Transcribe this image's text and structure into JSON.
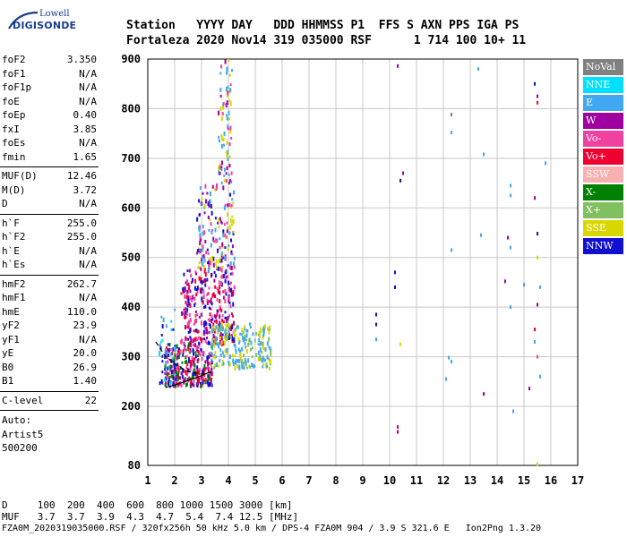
{
  "logo": {
    "line1": "Lowell",
    "line2": "DIGISONDE"
  },
  "header": {
    "line1": "Station   YYYY DAY   DDD HHMMSS P1  FFS S AXN PPS IGA PS",
    "line2": "Fortaleza 2020 Nov14 319 035000 RSF      1 714 100 10+ 11"
  },
  "params": {
    "group1": [
      {
        "name": "foF2",
        "value": "3.350"
      },
      {
        "name": "foF1",
        "value": "N/A"
      },
      {
        "name": "foF1p",
        "value": "N/A"
      },
      {
        "name": "foE",
        "value": "N/A"
      },
      {
        "name": "foEp",
        "value": "0.40"
      },
      {
        "name": "fxI",
        "value": "3.85"
      },
      {
        "name": "foEs",
        "value": "N/A"
      },
      {
        "name": "fmin",
        "value": "1.65"
      }
    ],
    "group2": [
      {
        "name": "MUF(D)",
        "value": "12.46"
      },
      {
        "name": "M(D)",
        "value": "3.72"
      },
      {
        "name": "D",
        "value": "N/A"
      }
    ],
    "group3": [
      {
        "name": "h`F",
        "value": "255.0"
      },
      {
        "name": "h`F2",
        "value": "255.0"
      },
      {
        "name": "h`E",
        "value": "N/A"
      },
      {
        "name": "h`Es",
        "value": "N/A"
      }
    ],
    "group4": [
      {
        "name": "hmF2",
        "value": "262.7"
      },
      {
        "name": "hmF1",
        "value": "N/A"
      },
      {
        "name": "hmE",
        "value": "110.0"
      },
      {
        "name": "yF2",
        "value": "23.9"
      },
      {
        "name": "yF1",
        "value": "N/A"
      },
      {
        "name": "yE",
        "value": "20.0"
      },
      {
        "name": "B0",
        "value": "26.9"
      },
      {
        "name": "B1",
        "value": "1.40"
      }
    ],
    "group5": [
      {
        "name": "C-level",
        "value": "22"
      }
    ],
    "auto": [
      "Auto:",
      "Artist5",
      "500200"
    ]
  },
  "legend": [
    {
      "label": "NoVal",
      "color": "#808080"
    },
    {
      "label": "NNE",
      "color": "#00e0ff"
    },
    {
      "label": "E",
      "color": "#40a8f0"
    },
    {
      "label": "W",
      "color": "#a000a0"
    },
    {
      "label": "Vo-",
      "color": "#f040a0"
    },
    {
      "label": "Vo+",
      "color": "#f00030"
    },
    {
      "label": "SSW",
      "color": "#f8b0b0"
    },
    {
      "label": "X-",
      "color": "#008000"
    },
    {
      "label": "X+",
      "color": "#80c060"
    },
    {
      "label": "SSE",
      "color": "#d8d800"
    },
    {
      "label": "NNW",
      "color": "#1010d0"
    }
  ],
  "bottom": {
    "distance_line": "D     100  200  400  600  800 1000 1500 3000 [km]",
    "muf_line": "MUF   3.7  3.7  3.9  4.3  4.7  5.4  7.4 12.5 [MHz]",
    "footer": "FZA0M_2020319035000.RSF / 320fx256h 50 kHz 5.0 km / DPS-4 FZA0M 904 / 3.9 S 321.6 E   Ion2Png 1.3.20"
  },
  "chart_data": {
    "type": "scatter",
    "title": "",
    "xlabel": "",
    "ylabel": "",
    "xlim": [
      1,
      17
    ],
    "ylim": [
      80,
      900
    ],
    "x_ticks": [
      1,
      2,
      3,
      4,
      5,
      6,
      7,
      8,
      9,
      10,
      11,
      12,
      13,
      14,
      15,
      16,
      17
    ],
    "y_ticks": [
      80,
      200,
      300,
      400,
      500,
      600,
      700,
      800,
      900
    ],
    "grid": true,
    "legend_position": "right",
    "profile_line": [
      [
        1.65,
        238
      ],
      [
        2.0,
        243
      ],
      [
        2.5,
        252
      ],
      [
        3.0,
        262
      ],
      [
        3.35,
        270
      ]
    ],
    "dashed_curve": [
      [
        1.3,
        330
      ],
      [
        1.6,
        305
      ],
      [
        2.0,
        285
      ],
      [
        2.5,
        270
      ],
      [
        3.0,
        265
      ],
      [
        3.35,
        268
      ]
    ],
    "trace_regions": [
      {
        "x": [
          1.6,
          3.4
        ],
        "y": [
          245,
          330
        ],
        "count": 300,
        "mix": [
          "#f00030",
          "#a000a0",
          "#1010d0",
          "#f040a0",
          "#008000"
        ]
      },
      {
        "x": [
          2.2,
          4.2
        ],
        "y": [
          330,
          480
        ],
        "count": 300,
        "mix": [
          "#1010d0",
          "#a000a0",
          "#f040a0",
          "#f00030"
        ]
      },
      {
        "x": [
          3.3,
          5.6
        ],
        "y": [
          280,
          370
        ],
        "count": 220,
        "mix": [
          "#40a8f0",
          "#40a8f0",
          "#d8d800",
          "#80c060"
        ]
      },
      {
        "x": [
          2.8,
          4.2
        ],
        "y": [
          480,
          650
        ],
        "count": 160,
        "mix": [
          "#a000a0",
          "#40a8f0",
          "#d8d800",
          "#1010d0",
          "#f040a0"
        ]
      },
      {
        "x": [
          3.6,
          4.1
        ],
        "y": [
          650,
          900
        ],
        "count": 80,
        "mix": [
          "#d8d800",
          "#a000a0",
          "#f040a0",
          "#40a8f0"
        ]
      },
      {
        "x": [
          1.4,
          2.0
        ],
        "y": [
          250,
          400
        ],
        "count": 40,
        "mix": [
          "#40a8f0",
          "#1010d0",
          "#00e0ff"
        ]
      }
    ],
    "isolated_points": [
      {
        "x": 10.3,
        "y": 886,
        "c": "#a000a0"
      },
      {
        "x": 10.2,
        "y": 470,
        "c": "#1010d0"
      },
      {
        "x": 10.2,
        "y": 440,
        "c": "#1010d0"
      },
      {
        "x": 10.5,
        "y": 670,
        "c": "#a000a0"
      },
      {
        "x": 10.4,
        "y": 655,
        "c": "#1010d0"
      },
      {
        "x": 10.3,
        "y": 148,
        "c": "#a000a0"
      },
      {
        "x": 10.3,
        "y": 158,
        "c": "#f00030"
      },
      {
        "x": 10.4,
        "y": 325,
        "c": "#d8d800"
      },
      {
        "x": 9.5,
        "y": 385,
        "c": "#1010d0"
      },
      {
        "x": 9.5,
        "y": 365,
        "c": "#1010d0"
      },
      {
        "x": 9.5,
        "y": 335,
        "c": "#40a8f0"
      },
      {
        "x": 12.3,
        "y": 788,
        "c": "#808080"
      },
      {
        "x": 12.3,
        "y": 752,
        "c": "#40a8f0"
      },
      {
        "x": 12.3,
        "y": 515,
        "c": "#40a8f0"
      },
      {
        "x": 12.2,
        "y": 298,
        "c": "#40a8f0"
      },
      {
        "x": 12.3,
        "y": 290,
        "c": "#40a8f0"
      },
      {
        "x": 12.1,
        "y": 255,
        "c": "#40a8f0"
      },
      {
        "x": 13.3,
        "y": 880,
        "c": "#40a8f0"
      },
      {
        "x": 13.5,
        "y": 708,
        "c": "#40a8f0"
      },
      {
        "x": 13.4,
        "y": 545,
        "c": "#40a8f0"
      },
      {
        "x": 13.5,
        "y": 225,
        "c": "#a000a0"
      },
      {
        "x": 14.5,
        "y": 645,
        "c": "#40a8f0"
      },
      {
        "x": 14.5,
        "y": 625,
        "c": "#40a8f0"
      },
      {
        "x": 14.4,
        "y": 540,
        "c": "#a000a0"
      },
      {
        "x": 14.5,
        "y": 520,
        "c": "#40a8f0"
      },
      {
        "x": 14.3,
        "y": 452,
        "c": "#a000a0"
      },
      {
        "x": 14.5,
        "y": 400,
        "c": "#40a8f0"
      },
      {
        "x": 14.6,
        "y": 190,
        "c": "#40a8f0"
      },
      {
        "x": 15.4,
        "y": 850,
        "c": "#1010d0"
      },
      {
        "x": 15.5,
        "y": 825,
        "c": "#a000a0"
      },
      {
        "x": 15.5,
        "y": 812,
        "c": "#f00030"
      },
      {
        "x": 15.4,
        "y": 620,
        "c": "#a000a0"
      },
      {
        "x": 15.5,
        "y": 548,
        "c": "#1010d0"
      },
      {
        "x": 15.5,
        "y": 500,
        "c": "#d8d800"
      },
      {
        "x": 15.6,
        "y": 440,
        "c": "#40a8f0"
      },
      {
        "x": 15.5,
        "y": 405,
        "c": "#a000a0"
      },
      {
        "x": 15.4,
        "y": 355,
        "c": "#f00030"
      },
      {
        "x": 15.4,
        "y": 330,
        "c": "#40a8f0"
      },
      {
        "x": 15.5,
        "y": 300,
        "c": "#f040a0"
      },
      {
        "x": 15.2,
        "y": 236,
        "c": "#a000a0"
      },
      {
        "x": 15.6,
        "y": 260,
        "c": "#40a8f0"
      },
      {
        "x": 15.5,
        "y": 83,
        "c": "#d8d800"
      },
      {
        "x": 15.8,
        "y": 690,
        "c": "#40a8f0"
      },
      {
        "x": 15.0,
        "y": 445,
        "c": "#40a8f0"
      }
    ]
  }
}
